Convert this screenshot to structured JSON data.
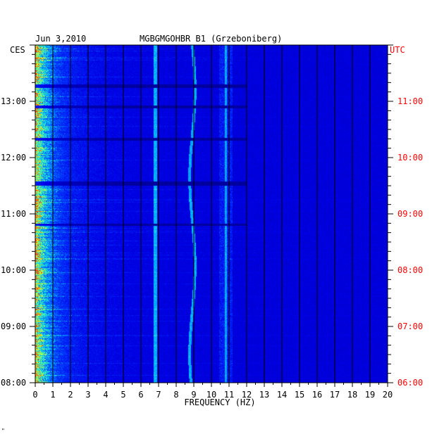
{
  "chart_data": {
    "type": "heatmap",
    "date": "Jun 3,2010",
    "station": "MGBGMGOHBR B1 (Grzeboniberg)",
    "xlabel": "FREQUENCY (HZ)",
    "x_ticks": [
      "0",
      "1",
      "2",
      "3",
      "4",
      "5",
      "6",
      "7",
      "8",
      "9",
      "10",
      "11",
      "12",
      "13",
      "14",
      "15",
      "16",
      "17",
      "18",
      "19",
      "20"
    ],
    "xlim": [
      0,
      20
    ],
    "left_axis": {
      "label": "CES",
      "ticks": [
        {
          "label": "13:00",
          "hours_from_bottom": 5
        },
        {
          "label": "12:00",
          "hours_from_bottom": 4
        },
        {
          "label": "11:00",
          "hours_from_bottom": 3
        },
        {
          "label": "10:00",
          "hours_from_bottom": 2
        },
        {
          "label": "09:00",
          "hours_from_bottom": 1
        },
        {
          "label": "08:00",
          "hours_from_bottom": 0
        }
      ]
    },
    "right_axis": {
      "label": "UTC",
      "ticks": [
        {
          "label": "11:00",
          "hours_from_bottom": 5
        },
        {
          "label": "10:00",
          "hours_from_bottom": 4
        },
        {
          "label": "09:00",
          "hours_from_bottom": 3
        },
        {
          "label": "08:00",
          "hours_from_bottom": 2
        },
        {
          "label": "07:00",
          "hours_from_bottom": 1
        },
        {
          "label": "06:00",
          "hours_from_bottom": 0
        }
      ]
    },
    "ylim_hours": [
      0,
      6
    ],
    "colors": {
      "background": "#0000cc",
      "low": "#0000ff",
      "mid": "#00c8ff",
      "high": "#ffff00",
      "peak": "#ff0000",
      "grid": "#000000",
      "utc_text": "#ff0000"
    },
    "prominent_lines_hz": [
      6.8,
      8.9,
      10.8
    ]
  },
  "footer_mark": "\""
}
